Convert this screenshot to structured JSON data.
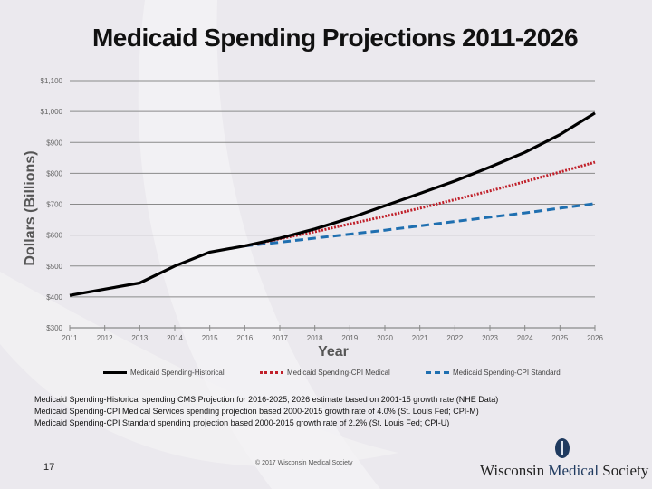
{
  "slide": {
    "title": "Medicaid Spending Projections 2011-2026",
    "page_number": "17",
    "copyright": "© 2017 Wisconsin Medical Society",
    "logo": {
      "part1": "Wisconsin ",
      "part2": "Medical",
      "part3": " Society"
    },
    "notes": [
      "Medicaid Spending-Historical spending CMS Projection for 2016-2025; 2026 estimate based on 2001-15 growth rate (NHE Data)",
      "Medicaid Spending-CPI Medical Services spending projection based 2000-2015 growth rate of 4.0% (St. Louis Fed; CPI-M)",
      "Medicaid Spending-CPI Standard spending projection based 2000-2015 growth rate of 2.2% (St. Louis Fed; CPI-U)"
    ]
  },
  "chart_data": {
    "type": "line",
    "title": "Medicaid Spending Projections 2011-2026",
    "xlabel": "Year",
    "ylabel": "Dollars (Billions)",
    "x": [
      2011,
      2012,
      2013,
      2014,
      2015,
      2016,
      2017,
      2018,
      2019,
      2020,
      2021,
      2022,
      2023,
      2024,
      2025,
      2026
    ],
    "x_tick_labels": [
      "2011",
      "2012",
      "2013",
      "2014",
      "2015",
      "2016",
      "2017",
      "2018",
      "2019",
      "2020",
      "2021",
      "2022",
      "2023",
      "2024",
      "2025",
      "2026"
    ],
    "ylim": [
      300,
      1100
    ],
    "y_ticks": [
      300,
      400,
      500,
      600,
      700,
      800,
      900,
      1000,
      1100
    ],
    "y_tick_labels": [
      "$300",
      "$400",
      "$500",
      "$600",
      "$700",
      "$800",
      "$900",
      "$1,000",
      "$1,100"
    ],
    "grid": true,
    "legend_position": "bottom",
    "series": [
      {
        "name": "Medicaid Spending-Historical",
        "color": "#000000",
        "style": "solid",
        "x": [
          2011,
          2012,
          2013,
          2014,
          2015,
          2016,
          2017,
          2018,
          2019,
          2020,
          2021,
          2022,
          2023,
          2024,
          2025,
          2026
        ],
        "values": [
          405,
          425,
          445,
          500,
          545,
          565,
          590,
          620,
          655,
          695,
          735,
          775,
          820,
          868,
          925,
          995
        ]
      },
      {
        "name": "Medicaid Spending-CPI Medical",
        "color": "#c0202a",
        "style": "dotted",
        "x": [
          2016,
          2017,
          2018,
          2019,
          2020,
          2021,
          2022,
          2023,
          2024,
          2025,
          2026
        ],
        "values": [
          565,
          588,
          611,
          636,
          661,
          687,
          715,
          743,
          773,
          804,
          836
        ]
      },
      {
        "name": "Medicaid Spending-CPI Standard",
        "color": "#1f6fb0",
        "style": "dashed",
        "x": [
          2016,
          2017,
          2018,
          2019,
          2020,
          2021,
          2022,
          2023,
          2024,
          2025,
          2026
        ],
        "values": [
          565,
          577,
          590,
          603,
          616,
          630,
          644,
          658,
          672,
          687,
          702
        ]
      }
    ]
  }
}
